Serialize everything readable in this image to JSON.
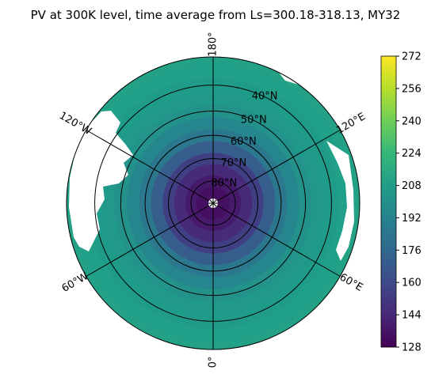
{
  "chart_data": {
    "type": "heatmap",
    "projection": "north-polar-stereographic",
    "title": "PV at 300K level, time average from Ls=300.18-318.13, MY32",
    "colormap": "viridis",
    "colorbar": {
      "min": 128,
      "max": 272,
      "ticks": [
        "272",
        "256",
        "240",
        "224",
        "208",
        "192",
        "176",
        "160",
        "144",
        "128"
      ]
    },
    "lat_circles": [
      {
        "lat": 40,
        "label": "40°N"
      },
      {
        "lat": 50,
        "label": "50°N"
      },
      {
        "lat": 60,
        "label": "60°N"
      },
      {
        "lat": 70,
        "label": "70°N"
      },
      {
        "lat": 80,
        "label": "80°N"
      }
    ],
    "lon_lines": [
      {
        "lon": 0,
        "label": "0°"
      },
      {
        "lon": 60,
        "label": "60°E"
      },
      {
        "lon": 120,
        "label": "120°E"
      },
      {
        "lon": 180,
        "label": "180°"
      },
      {
        "lon": -120,
        "label": "120°W"
      },
      {
        "lon": -60,
        "label": "60°W"
      }
    ],
    "lat_limit": 30,
    "profile": [
      {
        "lat": 90,
        "value": 132
      },
      {
        "lat": 85,
        "value": 134
      },
      {
        "lat": 80,
        "value": 138
      },
      {
        "lat": 75,
        "value": 145
      },
      {
        "lat": 70,
        "value": 155
      },
      {
        "lat": 65,
        "value": 170
      },
      {
        "lat": 60,
        "value": 185
      },
      {
        "lat": 55,
        "value": 195
      },
      {
        "lat": 50,
        "value": 201
      },
      {
        "lat": 45,
        "value": 205
      },
      {
        "lat": 40,
        "value": 207
      },
      {
        "lat": 35,
        "value": 209
      },
      {
        "lat": 30,
        "value": 210
      }
    ]
  }
}
